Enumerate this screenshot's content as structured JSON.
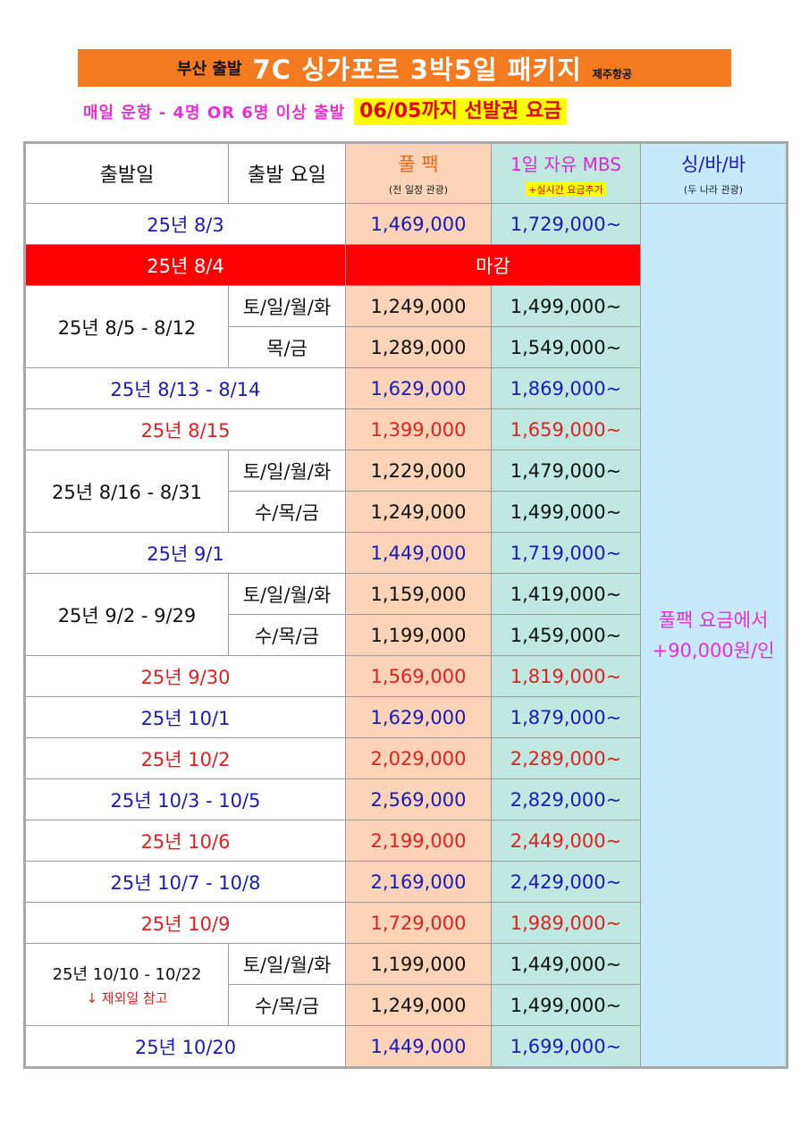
{
  "title": {
    "prefix": "부산 출발",
    "main": "7C 싱가포르 3박5일 패키지",
    "airline": "제주항공"
  },
  "subtitle": {
    "text": "매일 운항 - 4명 OR 6명 이상 출발",
    "highlight": "06/05까지 선발권 요금"
  },
  "colors": {
    "title_bg": "#f47a1f",
    "highlight_bg": "#ffff00",
    "closed_bg": "#ff0000",
    "fullpack_bg": "#fbd3b6",
    "freeday_bg": "#bfe9e0",
    "sbb_bg": "#c7eafb"
  },
  "header": {
    "date": "출발일",
    "weekday": "출발 요일",
    "fullpack": "풀 팩",
    "fullpack_note": "(전 일정 관광)",
    "freeday": "1일 자유 MBS",
    "freeday_note": "+실시간 요금추가",
    "sbb": "싱/바/바",
    "sbb_note": "(두 나라 관광)"
  },
  "rows": [
    {
      "date": "25년 8/3",
      "full": "1,469,000",
      "free": "1,729,000~"
    },
    {
      "date": "25년 8/4",
      "closed": "마감"
    },
    {
      "date": "25년 8/5 - 8/12",
      "day": "토/일/월/화",
      "full": "1,249,000",
      "free": "1,499,000~"
    },
    {
      "day": "목/금",
      "full": "1,289,000",
      "free": "1,549,000~"
    },
    {
      "date": "25년 8/13 - 8/14",
      "full": "1,629,000",
      "free": "1,869,000~"
    },
    {
      "date": "25년 8/15",
      "full": "1,399,000",
      "free": "1,659,000~"
    },
    {
      "date": "25년 8/16 - 8/31",
      "day": "토/일/월/화",
      "full": "1,229,000",
      "free": "1,479,000~"
    },
    {
      "day": "수/목/금",
      "full": "1,249,000",
      "free": "1,499,000~"
    },
    {
      "date": "25년 9/1",
      "full": "1,449,000",
      "free": "1,719,000~"
    },
    {
      "date": "25년 9/2 - 9/29",
      "day": "토/일/월/화",
      "full": "1,159,000",
      "free": "1,419,000~"
    },
    {
      "day": "수/목/금",
      "full": "1,199,000",
      "free": "1,459,000~"
    },
    {
      "date": "25년 9/30",
      "full": "1,569,000",
      "free": "1,819,000~"
    },
    {
      "date": "25년 10/1",
      "full": "1,629,000",
      "free": "1,879,000~"
    },
    {
      "date": "25년 10/2",
      "full": "2,029,000",
      "free": "2,289,000~"
    },
    {
      "date": "25년 10/3 - 10/5",
      "full": "2,569,000",
      "free": "2,829,000~"
    },
    {
      "date": "25년 10/6",
      "full": "2,199,000",
      "free": "2,449,000~"
    },
    {
      "date": "25년 10/7 - 10/8",
      "full": "2,169,000",
      "free": "2,429,000~"
    },
    {
      "date": "25년 10/9",
      "full": "1,729,000",
      "free": "1,989,000~"
    },
    {
      "date": "25년 10/10 - 10/22",
      "date_note": "↓ 제외일 참고",
      "day": "토/일/월/화",
      "full": "1,199,000",
      "free": "1,449,000~"
    },
    {
      "day": "수/목/금",
      "full": "1,249,000",
      "free": "1,499,000~"
    },
    {
      "date": "25년 10/20",
      "full": "1,449,000",
      "free": "1,699,000~"
    }
  ],
  "sbb_note": {
    "line1": "풀팩 요금에서",
    "line2": "+90,000원/인"
  }
}
